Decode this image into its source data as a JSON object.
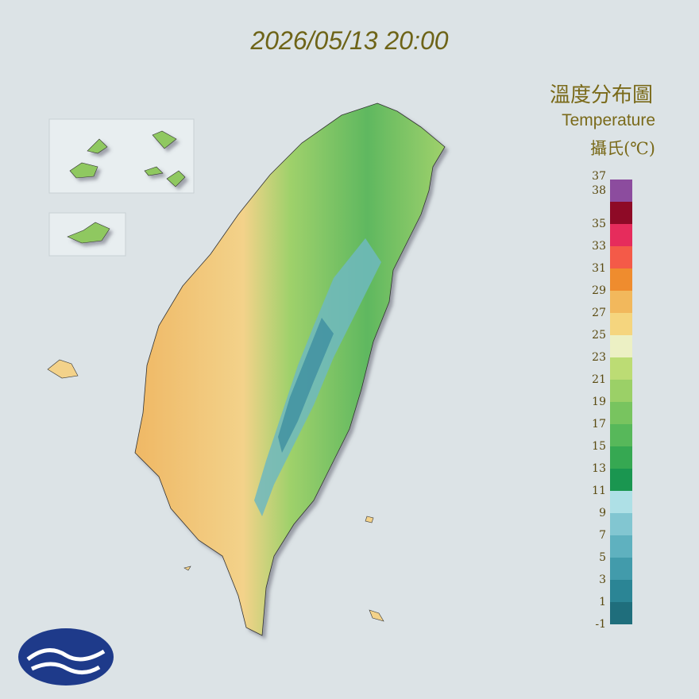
{
  "header": {
    "timestamp": "2026/05/13 20:00"
  },
  "legend": {
    "title": "溫度分布圖",
    "subtitle": "Temperature",
    "unit": "攝氏(℃)",
    "labels": [
      38,
      37,
      35,
      33,
      31,
      29,
      27,
      25,
      23,
      21,
      19,
      17,
      15,
      13,
      11,
      9,
      7,
      5,
      3,
      1,
      -1
    ],
    "colors": [
      "#1f6e7c",
      "#2b8595",
      "#429bab",
      "#5fb1bf",
      "#82c6d1",
      "#aee0e6",
      "#1a9650",
      "#36a852",
      "#57b85a",
      "#78c45f",
      "#9bd067",
      "#bcdc74",
      "#ecf0c4",
      "#f5d57e",
      "#f2b85c",
      "#ef8c2e",
      "#f45a48",
      "#e62c5c",
      "#8e0a26",
      "#8c4c9e"
    ]
  }
}
